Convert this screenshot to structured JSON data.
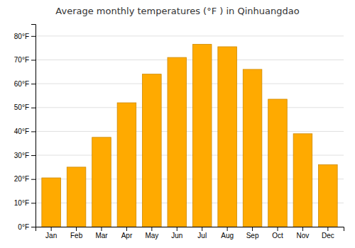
{
  "chart_data": {
    "type": "bar",
    "title": "Average monthly temperatures (°F ) in Qinhuangdao",
    "categories": [
      "Jan",
      "Feb",
      "Mar",
      "Apr",
      "May",
      "Jun",
      "Jul",
      "Aug",
      "Sep",
      "Oct",
      "Nov",
      "Dec"
    ],
    "values": [
      20.5,
      25.0,
      37.5,
      52.0,
      64.0,
      71.0,
      76.5,
      75.5,
      66.0,
      53.5,
      39.0,
      26.0
    ],
    "color": "#FFAA00",
    "ylim": [
      0,
      85
    ],
    "yticks": [
      {
        "value": 0,
        "label": "0°F"
      },
      {
        "value": 10,
        "label": "10°F"
      },
      {
        "value": 20,
        "label": "20°F"
      },
      {
        "value": 30,
        "label": "30°F"
      },
      {
        "value": 40,
        "label": "40°F"
      },
      {
        "value": 50,
        "label": "50°F"
      },
      {
        "value": 60,
        "label": "60°F"
      },
      {
        "value": 70,
        "label": "70°F"
      },
      {
        "value": 80,
        "label": "80°F"
      }
    ],
    "grid": true
  }
}
